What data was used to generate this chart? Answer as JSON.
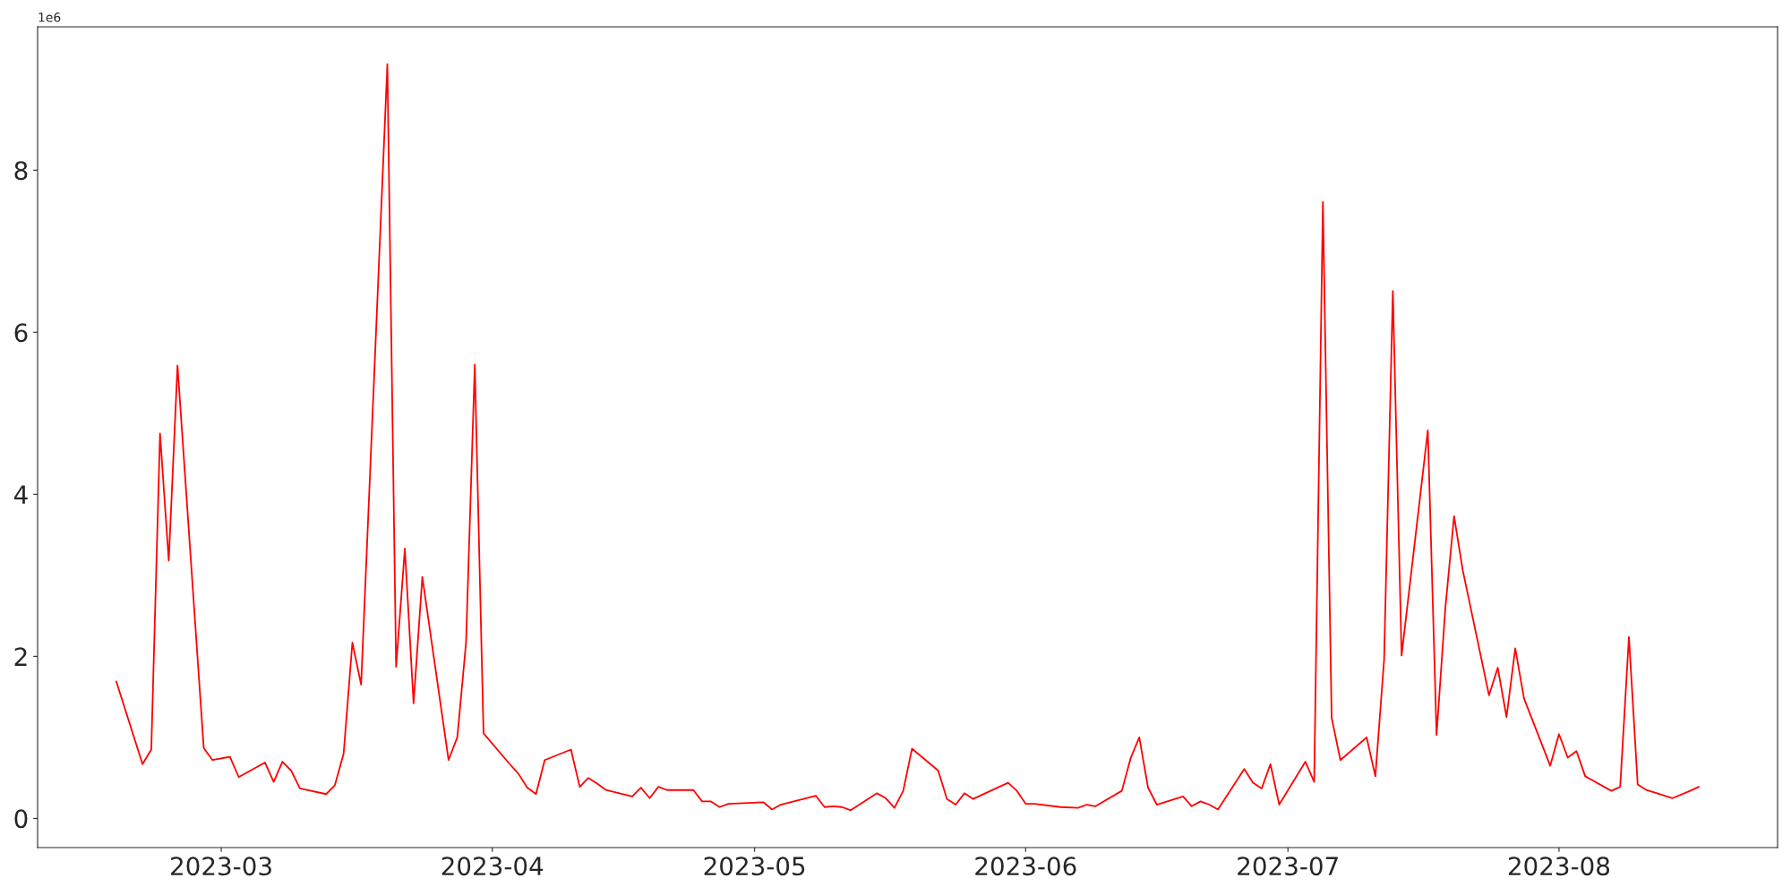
{
  "chart_data": {
    "type": "line",
    "x": [
      "2023-02-17",
      "2023-02-20",
      "2023-02-21",
      "2023-02-22",
      "2023-02-23",
      "2023-02-24",
      "2023-02-27",
      "2023-02-28",
      "2023-03-02",
      "2023-03-03",
      "2023-03-06",
      "2023-03-07",
      "2023-03-08",
      "2023-03-09",
      "2023-03-10",
      "2023-03-13",
      "2023-03-14",
      "2023-03-15",
      "2023-03-16",
      "2023-03-17",
      "2023-03-20",
      "2023-03-21",
      "2023-03-22",
      "2023-03-23",
      "2023-03-24",
      "2023-03-27",
      "2023-03-28",
      "2023-03-29",
      "2023-03-30",
      "2023-03-31",
      "2023-04-03",
      "2023-04-04",
      "2023-04-05",
      "2023-04-06",
      "2023-04-07",
      "2023-04-10",
      "2023-04-11",
      "2023-04-12",
      "2023-04-13",
      "2023-04-14",
      "2023-04-17",
      "2023-04-18",
      "2023-04-19",
      "2023-04-20",
      "2023-04-21",
      "2023-04-24",
      "2023-04-25",
      "2023-04-26",
      "2023-04-27",
      "2023-04-28",
      "2023-05-02",
      "2023-05-03",
      "2023-05-04",
      "2023-05-08",
      "2023-05-09",
      "2023-05-10",
      "2023-05-11",
      "2023-05-12",
      "2023-05-15",
      "2023-05-16",
      "2023-05-17",
      "2023-05-18",
      "2023-05-19",
      "2023-05-22",
      "2023-05-23",
      "2023-05-24",
      "2023-05-25",
      "2023-05-26",
      "2023-05-30",
      "2023-05-31",
      "2023-06-01",
      "2023-06-02",
      "2023-06-05",
      "2023-06-07",
      "2023-06-08",
      "2023-06-09",
      "2023-06-12",
      "2023-06-13",
      "2023-06-14",
      "2023-06-15",
      "2023-06-16",
      "2023-06-19",
      "2023-06-20",
      "2023-06-21",
      "2023-06-22",
      "2023-06-23",
      "2023-06-26",
      "2023-06-27",
      "2023-06-28",
      "2023-06-29",
      "2023-06-30",
      "2023-07-03",
      "2023-07-04",
      "2023-07-05",
      "2023-07-06",
      "2023-07-07",
      "2023-07-10",
      "2023-07-11",
      "2023-07-12",
      "2023-07-13",
      "2023-07-14",
      "2023-07-17",
      "2023-07-18",
      "2023-07-19",
      "2023-07-20",
      "2023-07-21",
      "2023-07-24",
      "2023-07-25",
      "2023-07-26",
      "2023-07-27",
      "2023-07-28",
      "2023-07-31",
      "2023-08-01",
      "2023-08-02",
      "2023-08-03",
      "2023-08-04",
      "2023-08-07",
      "2023-08-08",
      "2023-08-09",
      "2023-08-10",
      "2023-08-11",
      "2023-08-14",
      "2023-08-16",
      "2023-08-17"
    ],
    "series": [
      {
        "color": "#ff0000",
        "values": [
          1.69,
          0.67,
          0.85,
          4.75,
          3.18,
          5.59,
          0.87,
          0.72,
          0.76,
          0.51,
          0.69,
          0.45,
          0.7,
          0.59,
          0.37,
          0.3,
          0.41,
          0.8,
          2.17,
          1.65,
          9.31,
          1.87,
          3.33,
          1.42,
          2.98,
          0.72,
          1.0,
          2.17,
          5.6,
          1.05,
          0.67,
          0.55,
          0.38,
          0.3,
          0.72,
          0.85,
          0.39,
          0.5,
          0.43,
          0.35,
          0.27,
          0.38,
          0.25,
          0.39,
          0.35,
          0.35,
          0.21,
          0.21,
          0.14,
          0.18,
          0.2,
          0.11,
          0.17,
          0.28,
          0.14,
          0.15,
          0.14,
          0.1,
          0.31,
          0.25,
          0.13,
          0.34,
          0.86,
          0.59,
          0.24,
          0.17,
          0.31,
          0.24,
          0.44,
          0.34,
          0.18,
          0.18,
          0.14,
          0.13,
          0.17,
          0.15,
          0.34,
          0.74,
          1.0,
          0.38,
          0.17,
          0.27,
          0.15,
          0.21,
          0.17,
          0.11,
          0.61,
          0.44,
          0.37,
          0.67,
          0.17,
          0.7,
          0.45,
          7.61,
          1.24,
          0.72,
          1.0,
          0.52,
          1.96,
          6.51,
          2.01,
          4.79,
          1.03,
          2.59,
          3.73,
          3.06,
          1.52,
          1.86,
          1.25,
          2.1,
          1.48,
          0.65,
          1.04,
          0.75,
          0.83,
          0.52,
          0.34,
          0.39,
          2.24,
          0.42,
          0.35,
          0.25,
          0.34,
          0.39
        ]
      }
    ],
    "xlim": [
      "2023-02-08",
      "2023-08-26"
    ],
    "xticks": [
      {
        "value": "2023-03-01",
        "label": "2023-03"
      },
      {
        "value": "2023-04-01",
        "label": "2023-04"
      },
      {
        "value": "2023-05-01",
        "label": "2023-05"
      },
      {
        "value": "2023-06-01",
        "label": "2023-06"
      },
      {
        "value": "2023-07-01",
        "label": "2023-07"
      },
      {
        "value": "2023-08-01",
        "label": "2023-08"
      }
    ],
    "ylim": [
      -0.36,
      9.77
    ],
    "yticks": [
      0,
      2,
      4,
      6,
      8
    ],
    "annotations": [
      "1e6"
    ],
    "grid": false
  }
}
